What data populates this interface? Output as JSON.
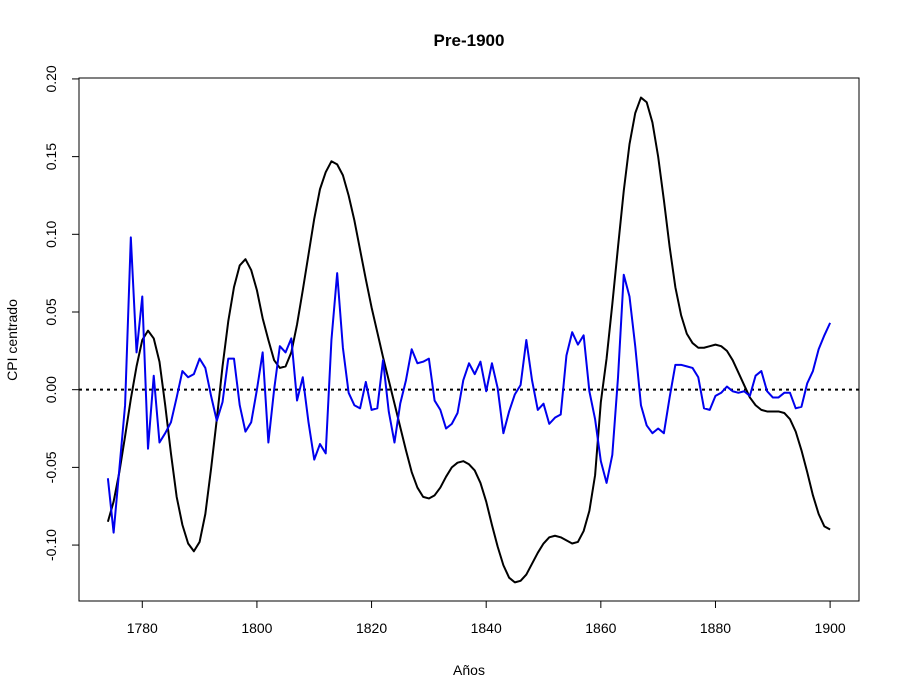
{
  "chart_data": {
    "type": "line",
    "title": "Pre-1900",
    "x_label": "Años",
    "y_label": "CPI centrado",
    "x": [
      1774,
      1775,
      1776,
      1777,
      1778,
      1779,
      1780,
      1781,
      1782,
      1783,
      1784,
      1785,
      1786,
      1787,
      1788,
      1789,
      1790,
      1791,
      1792,
      1793,
      1794,
      1795,
      1796,
      1797,
      1798,
      1799,
      1800,
      1801,
      1802,
      1803,
      1804,
      1805,
      1806,
      1807,
      1808,
      1809,
      1810,
      1811,
      1812,
      1813,
      1814,
      1815,
      1816,
      1817,
      1818,
      1819,
      1820,
      1821,
      1822,
      1823,
      1824,
      1825,
      1826,
      1827,
      1828,
      1829,
      1830,
      1831,
      1832,
      1833,
      1834,
      1835,
      1836,
      1837,
      1838,
      1839,
      1840,
      1841,
      1842,
      1843,
      1844,
      1845,
      1846,
      1847,
      1848,
      1849,
      1850,
      1851,
      1852,
      1853,
      1854,
      1855,
      1856,
      1857,
      1858,
      1859,
      1860,
      1861,
      1862,
      1863,
      1864,
      1865,
      1866,
      1867,
      1868,
      1869,
      1870,
      1871,
      1872,
      1873,
      1874,
      1875,
      1876,
      1877,
      1878,
      1879,
      1880,
      1881,
      1882,
      1883,
      1884,
      1885,
      1886,
      1887,
      1888,
      1889,
      1890,
      1891,
      1892,
      1893,
      1894,
      1895,
      1896,
      1897,
      1898,
      1899,
      1900
    ],
    "series": [
      {
        "color": "#000000",
        "values": [
          -0.085,
          -0.072,
          -0.053,
          -0.03,
          -0.006,
          0.015,
          0.032,
          0.038,
          0.033,
          0.018,
          -0.01,
          -0.041,
          -0.069,
          -0.087,
          -0.099,
          -0.104,
          -0.098,
          -0.08,
          -0.051,
          -0.019,
          0.015,
          0.044,
          0.066,
          0.08,
          0.084,
          0.077,
          0.064,
          0.046,
          0.032,
          0.019,
          0.014,
          0.015,
          0.024,
          0.042,
          0.064,
          0.087,
          0.11,
          0.129,
          0.14,
          0.147,
          0.145,
          0.138,
          0.125,
          0.109,
          0.09,
          0.071,
          0.053,
          0.037,
          0.021,
          0.006,
          -0.009,
          -0.024,
          -0.039,
          -0.053,
          -0.063,
          -0.069,
          -0.07,
          -0.068,
          -0.063,
          -0.056,
          -0.05,
          -0.047,
          -0.046,
          -0.048,
          -0.052,
          -0.06,
          -0.072,
          -0.087,
          -0.101,
          -0.113,
          -0.121,
          -0.124,
          -0.123,
          -0.119,
          -0.112,
          -0.105,
          -0.099,
          -0.095,
          -0.094,
          -0.095,
          -0.097,
          -0.099,
          -0.098,
          -0.091,
          -0.078,
          -0.055,
          -0.008,
          0.02,
          0.055,
          0.092,
          0.128,
          0.158,
          0.178,
          0.188,
          0.185,
          0.172,
          0.15,
          0.122,
          0.092,
          0.066,
          0.048,
          0.036,
          0.03,
          0.027,
          0.027,
          0.028,
          0.029,
          0.028,
          0.025,
          0.019,
          0.011,
          0.003,
          -0.005,
          -0.01,
          -0.013,
          -0.014,
          -0.014,
          -0.014,
          -0.015,
          -0.019,
          -0.027,
          -0.039,
          -0.053,
          -0.068,
          -0.08,
          -0.088,
          -0.09
        ]
      },
      {
        "color": "#0000ee",
        "values": [
          -0.057,
          -0.092,
          -0.051,
          -0.01,
          0.098,
          0.024,
          0.06,
          -0.038,
          0.009,
          -0.034,
          -0.028,
          -0.021,
          -0.005,
          0.012,
          0.008,
          0.01,
          0.02,
          0.014,
          -0.004,
          -0.02,
          -0.008,
          0.02,
          0.02,
          -0.01,
          -0.027,
          -0.021,
          0.0,
          0.024,
          -0.034,
          0.0,
          0.028,
          0.024,
          0.033,
          -0.007,
          0.008,
          -0.021,
          -0.045,
          -0.035,
          -0.041,
          0.032,
          0.075,
          0.027,
          -0.002,
          -0.01,
          -0.012,
          0.005,
          -0.013,
          -0.012,
          0.019,
          -0.014,
          -0.034,
          -0.009,
          0.006,
          0.026,
          0.017,
          0.018,
          0.02,
          -0.007,
          -0.013,
          -0.025,
          -0.022,
          -0.015,
          0.006,
          0.017,
          0.01,
          0.018,
          -0.001,
          0.017,
          0.001,
          -0.028,
          -0.014,
          -0.003,
          0.003,
          0.032,
          0.006,
          -0.013,
          -0.009,
          -0.022,
          -0.018,
          -0.016,
          0.022,
          0.037,
          0.029,
          0.035,
          -0.001,
          -0.019,
          -0.046,
          -0.06,
          -0.042,
          0.008,
          0.074,
          0.06,
          0.028,
          -0.01,
          -0.023,
          -0.028,
          -0.025,
          -0.028,
          -0.005,
          0.016,
          0.016,
          0.015,
          0.014,
          0.008,
          -0.012,
          -0.013,
          -0.004,
          -0.002,
          0.002,
          -0.001,
          -0.002,
          -0.001,
          -0.004,
          0.009,
          0.012,
          -0.001,
          -0.005,
          -0.005,
          -0.002,
          -0.002,
          -0.012,
          -0.011,
          0.004,
          0.012,
          0.026,
          0.035,
          0.043
        ]
      }
    ],
    "reference_line": 0,
    "xlim": [
      1768.96,
      1905.04
    ],
    "ylim": [
      -0.136,
      0.2006
    ],
    "xticks": [
      1780,
      1800,
      1820,
      1840,
      1860,
      1880,
      1900
    ],
    "yticks": [
      {
        "value": -0.1,
        "label": "-0.10"
      },
      {
        "value": -0.05,
        "label": "-0.05"
      },
      {
        "value": 0,
        "label": "0.00"
      },
      {
        "value": 0.05,
        "label": "0.05"
      },
      {
        "value": 0.1,
        "label": "0.10"
      },
      {
        "value": 0.15,
        "label": "0.15"
      },
      {
        "value": 0.2,
        "label": "0.20"
      }
    ]
  }
}
